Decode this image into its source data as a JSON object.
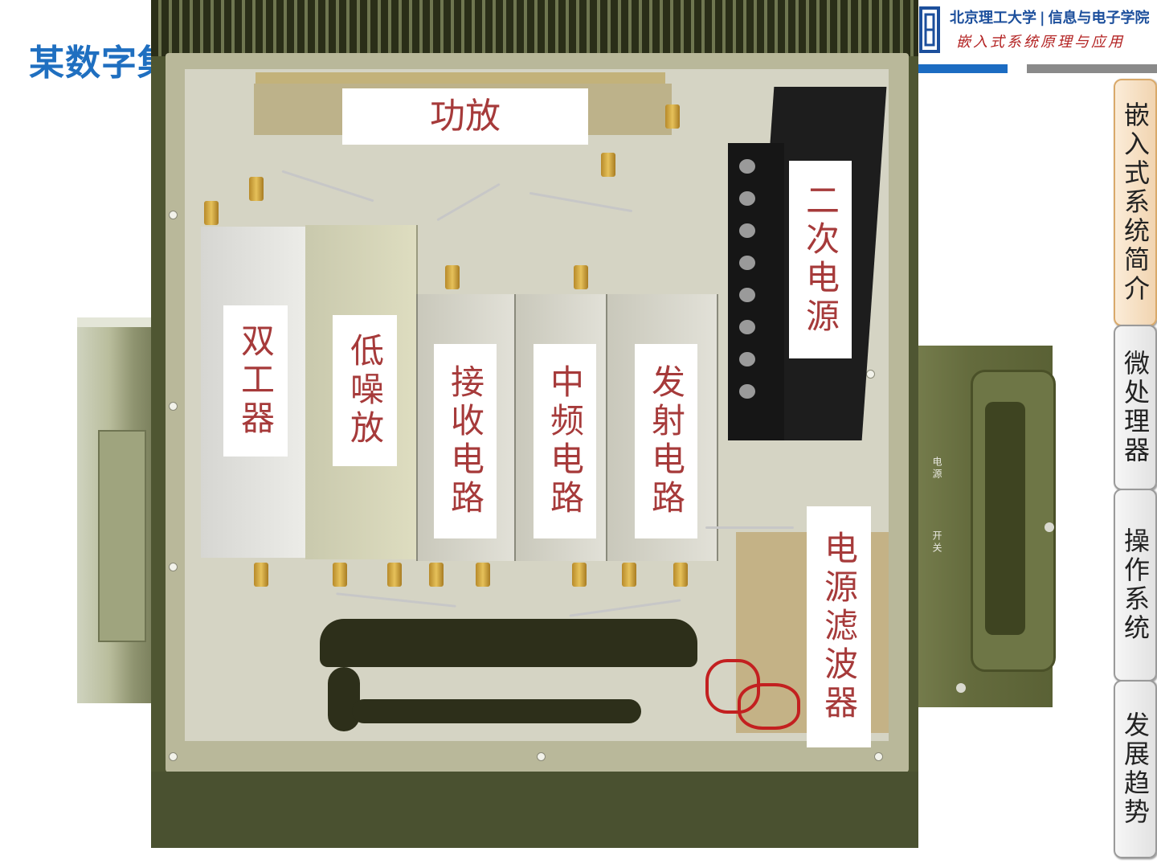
{
  "slide": {
    "title": "某数字集"
  },
  "header": {
    "university": "北京理工大学",
    "school": "信息与电子学院",
    "course": "嵌入式系统原理与应用"
  },
  "photo_labels": {
    "power_amp": "功放",
    "diplexer": "双工器",
    "lna": "低噪放",
    "receiver": "接收电路",
    "if_circuit": "中频电路",
    "transmitter": "发射电路",
    "secondary_power": "二次电源",
    "power_filter": "电源滤波器"
  },
  "side_device": {
    "power_label": "电源",
    "switch_label": "开关"
  },
  "nav": [
    {
      "label": "嵌入式系统简介",
      "active": true
    },
    {
      "label": "微处理器",
      "active": false
    },
    {
      "label": "操作系统",
      "active": false
    },
    {
      "label": "发展趋势",
      "active": false
    }
  ],
  "colors": {
    "title_blue": "#1f6fc0",
    "label_red": "#a63a3a",
    "nav_active": "#f1d4b0"
  }
}
